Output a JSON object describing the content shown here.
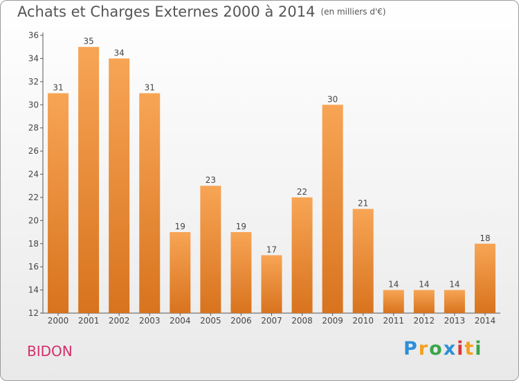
{
  "title": "Achats et Charges Externes 2000 à 2014",
  "unit": "(en milliers d'€)",
  "commune": "BIDON",
  "logo": {
    "letters": [
      "P",
      "r",
      "o",
      "x",
      "i",
      "t",
      "i"
    ],
    "colors": [
      "#2d8fd8",
      "#f2a020",
      "#3aa54a",
      "#2d8fd8",
      "#d83a3a",
      "#f2a020",
      "#3aa54a"
    ]
  },
  "colors": {
    "bar_light": "#f7a555",
    "bar_dark": "#d8731e",
    "title": "#555555",
    "commune": "#d22f6a"
  },
  "chart_data": {
    "type": "bar",
    "categories": [
      "2000",
      "2001",
      "2002",
      "2003",
      "2004",
      "2005",
      "2006",
      "2007",
      "2008",
      "2009",
      "2010",
      "2011",
      "2012",
      "2013",
      "2014"
    ],
    "values": [
      31,
      35,
      34,
      31,
      19,
      23,
      19,
      17,
      22,
      30,
      21,
      14,
      14,
      14,
      18
    ],
    "ylim": [
      12,
      36
    ],
    "yticks": [
      12,
      14,
      16,
      18,
      20,
      22,
      24,
      26,
      28,
      30,
      32,
      34,
      36
    ],
    "grid": false,
    "legend": "none"
  }
}
